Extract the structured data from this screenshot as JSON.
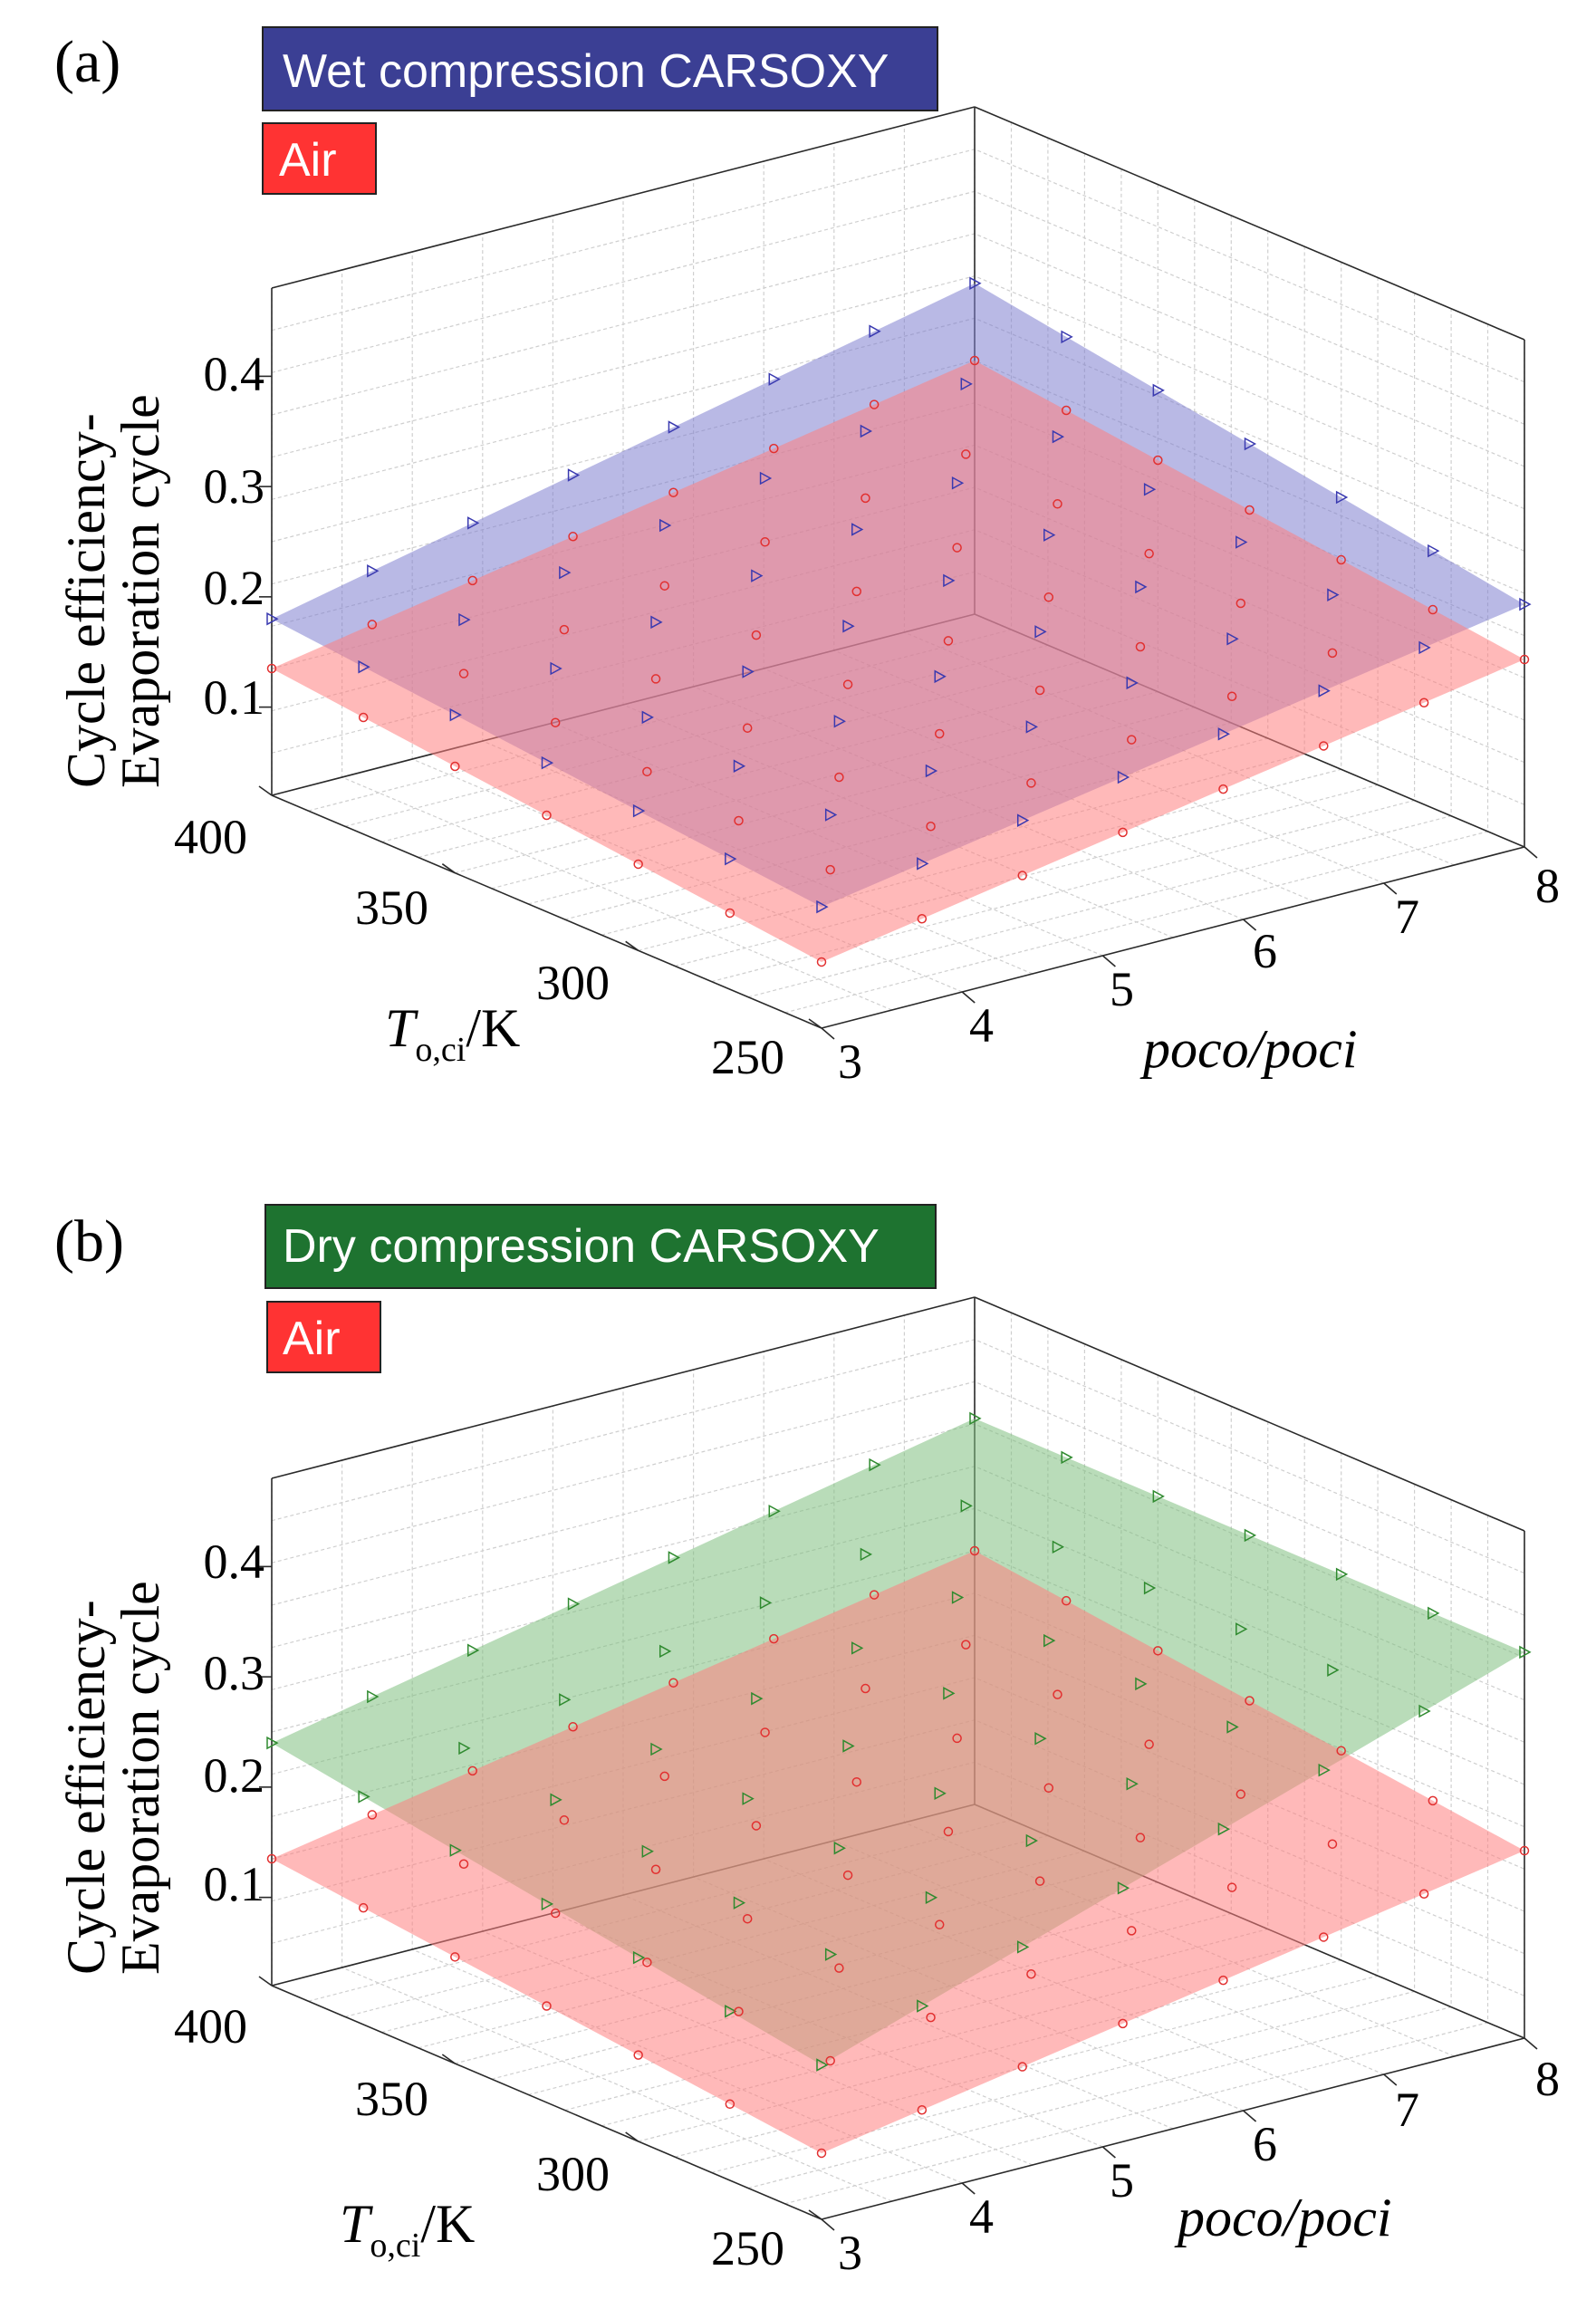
{
  "chart_data": [
    {
      "panel": "(a)",
      "type": "surface3d",
      "legend": [
        {
          "label": "Wet compression CARSOXY",
          "color": "#3b3f94"
        },
        {
          "label": "Air",
          "color": "#ff3333"
        }
      ],
      "zlabel": [
        "Cycle efficiency-",
        "Evaporation cycle"
      ],
      "xlabel": "poco/poci",
      "ylabel": {
        "main": "T",
        "sub": "o,ci",
        "unit": "/K"
      },
      "x_ticks": [
        "3",
        "4",
        "5",
        "6",
        "7",
        "8"
      ],
      "y_ticks": [
        "250",
        "300",
        "350",
        "400"
      ],
      "z_ticks": [
        "0.1",
        "0.2",
        "0.3",
        "0.4"
      ],
      "xlim": [
        3,
        8
      ],
      "ylim": [
        250,
        400
      ],
      "zlim": [
        0.02,
        0.48
      ],
      "series": [
        {
          "name": "Wet compression CARSOXY",
          "color": "#7f7fd0",
          "marker": "triangle-right",
          "corners": {
            "x3_y250": 0.13,
            "x8_y250": 0.24,
            "x3_y400": 0.18,
            "x8_y400": 0.32
          }
        },
        {
          "name": "Air",
          "color": "#ff8080",
          "marker": "circle",
          "corners": {
            "x3_y250": 0.08,
            "x8_y250": 0.19,
            "x3_y400": 0.135,
            "x8_y400": 0.25
          }
        }
      ]
    },
    {
      "panel": "(b)",
      "type": "surface3d",
      "legend": [
        {
          "label": "Dry compression CARSOXY",
          "color": "#1e7330"
        },
        {
          "label": "Air",
          "color": "#ff3333"
        }
      ],
      "zlabel": [
        "Cycle efficiency-",
        "Evaporation cycle"
      ],
      "xlabel": "poco/poci",
      "ylabel": {
        "main": "T",
        "sub": "o,ci",
        "unit": "/K"
      },
      "x_ticks": [
        "3",
        "4",
        "5",
        "6",
        "7",
        "8"
      ],
      "y_ticks": [
        "250",
        "300",
        "350",
        "400"
      ],
      "z_ticks": [
        "0.1",
        "0.2",
        "0.3",
        "0.4"
      ],
      "xlim": [
        3,
        8
      ],
      "ylim": [
        250,
        400
      ],
      "zlim": [
        0.02,
        0.48
      ],
      "series": [
        {
          "name": "Dry compression CARSOXY",
          "color": "#80c080",
          "marker": "triangle-right",
          "corners": {
            "x3_y250": 0.16,
            "x8_y250": 0.37,
            "x3_y400": 0.24,
            "x8_y400": 0.37
          }
        },
        {
          "name": "Air",
          "color": "#ff8080",
          "marker": "circle",
          "corners": {
            "x3_y250": 0.08,
            "x8_y250": 0.19,
            "x3_y400": 0.135,
            "x8_y400": 0.25
          }
        }
      ]
    }
  ]
}
